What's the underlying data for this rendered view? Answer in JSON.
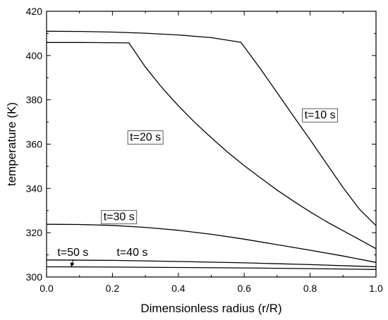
{
  "chart_data": {
    "type": "line",
    "xlabel": "Dimensionless radius (r/R)",
    "ylabel": "temperature (K)",
    "xlim": [
      0.0,
      1.0
    ],
    "ylim": [
      300,
      420
    ],
    "xticks": [
      0.0,
      0.2,
      0.4,
      0.6,
      0.8,
      1.0
    ],
    "xtick_labels": [
      "0.0",
      "0.2",
      "0.4",
      "0.6",
      "0.8",
      "1.0"
    ],
    "yticks": [
      300,
      320,
      340,
      360,
      380,
      400,
      420
    ],
    "ytick_labels": [
      "300",
      "320",
      "340",
      "360",
      "380",
      "400",
      "420"
    ],
    "grid": false,
    "series": [
      {
        "x": [
          0.0,
          0.1,
          0.2,
          0.3,
          0.4,
          0.5,
          0.59,
          0.65,
          0.7,
          0.75,
          0.8,
          0.85,
          0.9,
          0.95,
          1.0
        ],
        "y": [
          411,
          410.9,
          410.6,
          410.1,
          409.3,
          408.1,
          406.0,
          393.8,
          383.2,
          372.5,
          362.0,
          351.2,
          340.4,
          330.6,
          323.2
        ]
      },
      {
        "x": [
          0.0,
          0.1,
          0.2,
          0.25,
          0.3,
          0.35,
          0.4,
          0.45,
          0.5,
          0.55,
          0.6,
          0.65,
          0.7,
          0.75,
          0.8,
          0.85,
          0.9,
          0.95,
          1.0
        ],
        "y": [
          405.9,
          405.9,
          405.8,
          405.7,
          394.8,
          385.6,
          377.3,
          369.8,
          362.9,
          356.3,
          350.3,
          344.7,
          339.2,
          334.2,
          329.4,
          325.0,
          320.9,
          316.9,
          312.8
        ]
      },
      {
        "x": [
          0.0,
          0.1,
          0.2,
          0.3,
          0.4,
          0.5,
          0.6,
          0.7,
          0.8,
          0.9,
          1.0
        ],
        "y": [
          323.8,
          323.7,
          323.3,
          322.4,
          321.1,
          319.3,
          317.1,
          314.6,
          312.1,
          309.5,
          306.6
        ]
      },
      {
        "x": [
          0.0,
          0.2,
          0.4,
          0.6,
          0.8,
          1.0
        ],
        "y": [
          307.7,
          307.5,
          307.0,
          306.4,
          305.6,
          304.6
        ]
      },
      {
        "x": [
          0.0,
          0.2,
          0.4,
          0.6,
          0.8,
          1.0
        ],
        "y": [
          304.6,
          304.5,
          304.3,
          304.1,
          303.8,
          303.4
        ]
      }
    ],
    "annotations": [
      {
        "text": "t=10 s",
        "x": 0.83,
        "y": 373,
        "boxed": true
      },
      {
        "text": "t=20 s",
        "x": 0.3,
        "y": 363,
        "boxed": true
      },
      {
        "text": "t=30 s",
        "x": 0.22,
        "y": 327,
        "boxed": true
      },
      {
        "text": "t=40 s",
        "x": 0.26,
        "y": 311,
        "boxed": false
      },
      {
        "text": "t=50 s",
        "x": 0.08,
        "y": 311,
        "boxed": false,
        "arrow_to": {
          "x": 0.075,
          "y": 304.5
        }
      }
    ]
  }
}
